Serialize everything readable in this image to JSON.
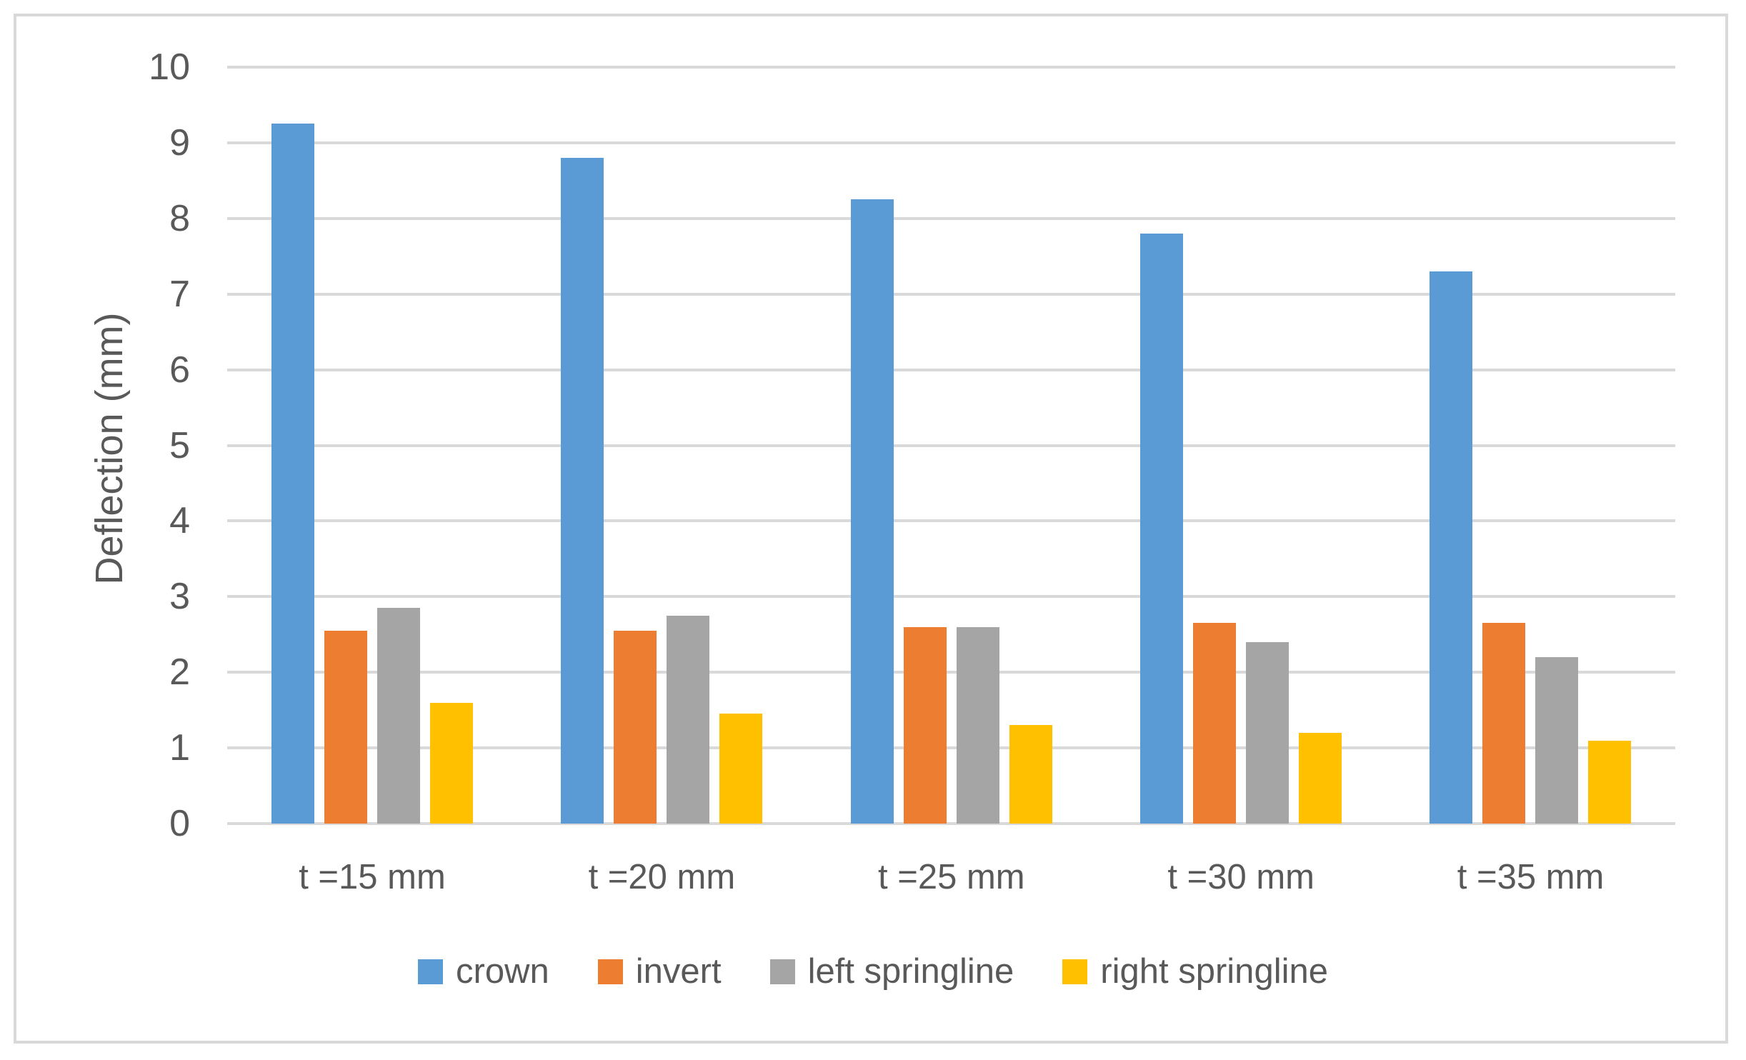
{
  "chart_data": {
    "type": "bar",
    "title": "",
    "xlabel": "",
    "ylabel": "Deflection (mm)",
    "categories": [
      "t =15 mm",
      "t =20 mm",
      "t =25 mm",
      "t =30 mm",
      "t =35 mm"
    ],
    "series": [
      {
        "name": "crown",
        "color": "#5B9BD5",
        "values": [
          9.25,
          8.8,
          8.25,
          7.8,
          7.3
        ]
      },
      {
        "name": "invert",
        "color": "#ED7D31",
        "values": [
          2.55,
          2.55,
          2.6,
          2.65,
          2.65
        ]
      },
      {
        "name": "left springline",
        "color": "#A5A5A5",
        "values": [
          2.85,
          2.75,
          2.6,
          2.4,
          2.2
        ]
      },
      {
        "name": "right springline",
        "color": "#FFC000",
        "values": [
          1.6,
          1.45,
          1.3,
          1.2,
          1.1
        ]
      }
    ],
    "ylim": [
      0,
      10
    ],
    "ytick_step": 1,
    "yticks": [
      0,
      1,
      2,
      3,
      4,
      5,
      6,
      7,
      8,
      9,
      10
    ],
    "grid": true,
    "legend_position": "bottom"
  },
  "style": {
    "grid_color": "#D9D9D9",
    "axis_text_color": "#595959",
    "frame_border_color": "#D9D9D9",
    "background_color": "#FFFFFF"
  }
}
